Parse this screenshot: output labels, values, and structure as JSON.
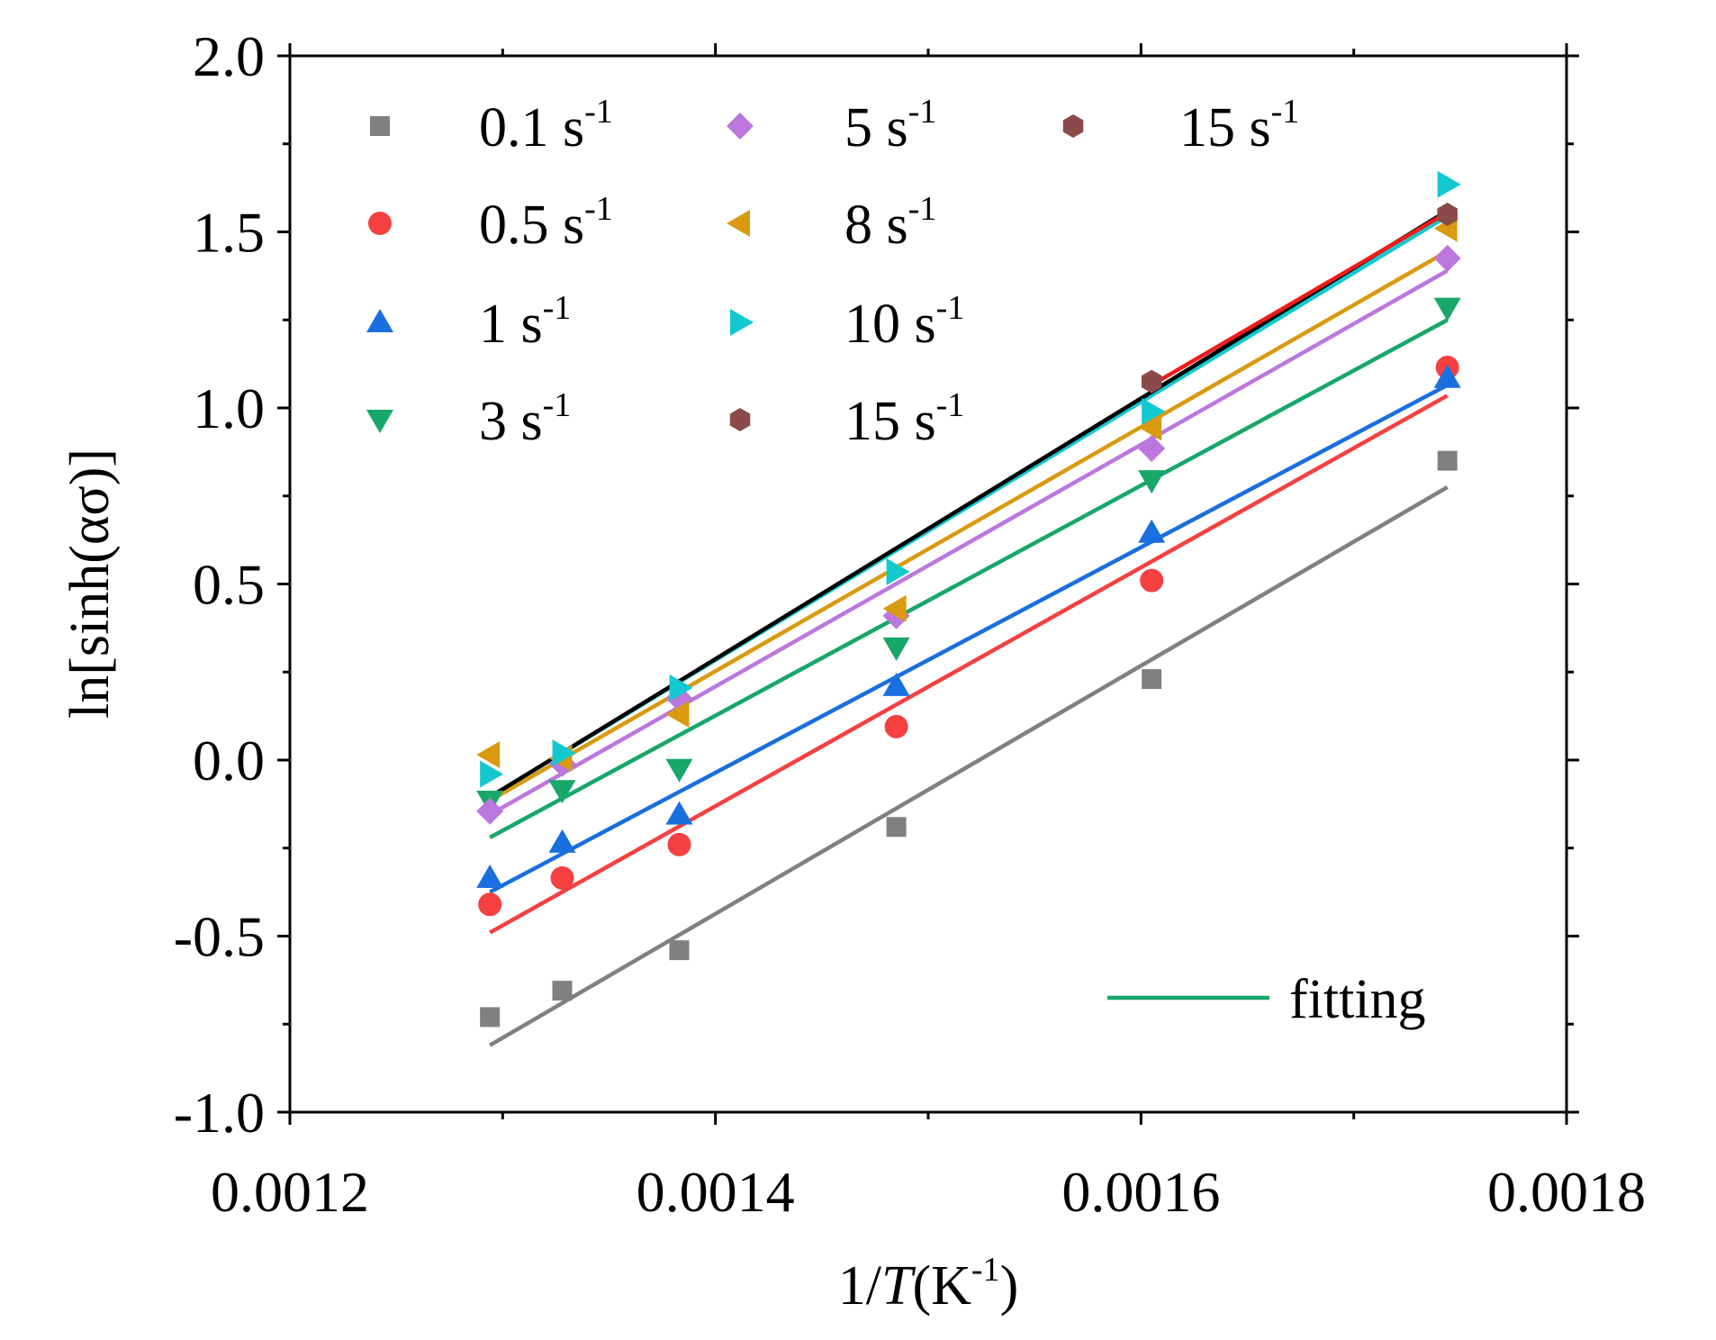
{
  "chart_data": {
    "type": "scatter",
    "xlabel": {
      "prefix": "1/",
      "italic": "T",
      "open": "(K",
      "sup": "-1",
      "close": ")"
    },
    "ylabel": "ln[sinh(ασ)]",
    "xlim": [
      0.0012,
      0.0018
    ],
    "ylim": [
      -1.0,
      2.0
    ],
    "x_ticks": [
      0.0012,
      0.0014,
      0.0016,
      0.0018
    ],
    "x_tick_labels": [
      "0.0012",
      "0.0014",
      "0.0016",
      "0.0018"
    ],
    "y_ticks": [
      -1.0,
      -0.5,
      0.0,
      0.5,
      1.0,
      1.5,
      2.0
    ],
    "y_tick_labels": [
      "-1.0",
      "-0.5",
      "0.0",
      "0.5",
      "1.0",
      "1.5",
      "2.0"
    ],
    "x": [
      0.001294,
      0.001328,
      0.001383,
      0.001485,
      0.001605,
      0.001744
    ],
    "series": [
      {
        "name": "0.1 s",
        "sup": "-1",
        "marker": "square",
        "color": "#808080",
        "values": [
          -0.73,
          -0.655,
          -0.54,
          -0.19,
          0.23,
          0.85
        ],
        "fit": [
          -0.81,
          0.775
        ]
      },
      {
        "name": "0.5 s",
        "sup": "-1",
        "marker": "circle",
        "color": "#f44040",
        "values": [
          -0.41,
          -0.335,
          -0.24,
          0.095,
          0.51,
          1.115
        ],
        "fit": [
          -0.49,
          1.035
        ]
      },
      {
        "name": "1 s",
        "sup": "-1",
        "marker": "triangle-up",
        "color": "#1a6fdf",
        "values": [
          -0.335,
          -0.235,
          -0.155,
          0.21,
          0.645,
          1.085
        ],
        "fit": [
          -0.375,
          1.065
        ]
      },
      {
        "name": "3 s",
        "sup": "-1",
        "marker": "triangle-down",
        "color": "#17a769",
        "values": [
          -0.115,
          -0.085,
          -0.025,
          0.32,
          0.795,
          1.285
        ],
        "fit": [
          -0.22,
          1.25
        ]
      },
      {
        "name": "5 s",
        "sup": "-1",
        "marker": "diamond",
        "color": "#bb77dd",
        "values": [
          -0.145,
          -0.01,
          0.175,
          0.41,
          0.885,
          1.425
        ],
        "fit": [
          -0.155,
          1.39
        ]
      },
      {
        "name": "8 s",
        "sup": "-1",
        "marker": "triangle-left",
        "color": "#d99a10",
        "values": [
          0.015,
          0.005,
          0.13,
          0.43,
          0.945,
          1.51
        ],
        "fit": [
          -0.115,
          1.445
        ]
      },
      {
        "name": "10 s",
        "sup": "-1",
        "marker": "triangle-right",
        "color": "#14c8d0",
        "values": [
          -0.04,
          0.02,
          0.205,
          0.535,
          0.99,
          1.635
        ],
        "fit": [
          -0.105,
          1.545
        ]
      },
      {
        "name": "15 s",
        "sup": "-1",
        "marker": "hexagon",
        "color": "#8b4a4a",
        "values": [
          null,
          null,
          null,
          null,
          1.075,
          1.55
        ],
        "fit": [
          null,
          null
        ]
      }
    ],
    "extra_fits": [
      {
        "color": "#000000",
        "x": [
          0.001294,
          0.001744
        ],
        "y": [
          -0.105,
          1.56
        ]
      },
      {
        "color": "#ee1c1c",
        "x": [
          0.001605,
          0.001744
        ],
        "y": [
          1.065,
          1.555
        ]
      }
    ],
    "legend": {
      "columns": [
        [
          {
            "text": "0.1 s",
            "sup": "-1",
            "marker": "square",
            "color": "#808080"
          },
          {
            "text": "0.5 s",
            "sup": "-1",
            "marker": "circle",
            "color": "#f44040"
          },
          {
            "text": "1 s",
            "sup": "-1",
            "marker": "triangle-up",
            "color": "#1a6fdf"
          },
          {
            "text": "3 s",
            "sup": "-1",
            "marker": "triangle-down",
            "color": "#17a769"
          }
        ],
        [
          {
            "text": "5 s",
            "sup": "-1",
            "marker": "diamond",
            "color": "#bb77dd"
          },
          {
            "text": "8 s",
            "sup": "-1",
            "marker": "triangle-left",
            "color": "#d99a10"
          },
          {
            "text": "10 s",
            "sup": "-1",
            "marker": "triangle-right",
            "color": "#14c8d0"
          },
          {
            "text": "15 s",
            "sup": "-1",
            "marker": "hexagon",
            "color": "#8b4a4a"
          }
        ],
        [
          {
            "text": "15 s",
            "sup": "-1",
            "marker": "hexagon",
            "color": "#8b4a4a"
          }
        ]
      ],
      "fit_label": "fitting",
      "fit_color": "#17a769"
    }
  }
}
